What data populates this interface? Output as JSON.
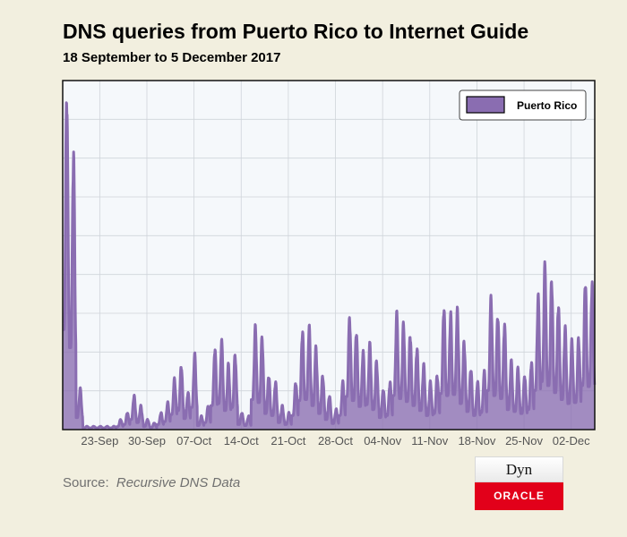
{
  "chart_data": {
    "type": "area",
    "title": "DNS queries from Puerto Rico to Internet Guide",
    "subtitle": "18 September to 5 December 2017",
    "xlabel": "",
    "ylabel": "",
    "x_range": [
      "2017-09-18",
      "2017-12-05"
    ],
    "x_ticks": [
      "23-Sep",
      "30-Sep",
      "07-Oct",
      "14-Oct",
      "21-Oct",
      "28-Oct",
      "04-Nov",
      "11-Nov",
      "18-Nov",
      "25-Nov",
      "02-Dec"
    ],
    "y_ticks_labeled": false,
    "grid": true,
    "legend_position": "top-right",
    "series": [
      {
        "name": "Puerto Rico",
        "color": "#8a6db1",
        "daily_peak": [
          "2017-09-18:1.00",
          "2017-09-19:0.82",
          "2017-09-20:0.12",
          "2017-09-21:0.01",
          "2017-09-22:0.01",
          "2017-09-23:0.01",
          "2017-09-24:0.01",
          "2017-09-25:0.01",
          "2017-09-26:0.03",
          "2017-09-27:0.05",
          "2017-09-28:0.10",
          "2017-09-29:0.07",
          "2017-09-30:0.03",
          "2017-10-01:0.02",
          "2017-10-02:0.05",
          "2017-10-03:0.08",
          "2017-10-04:0.15",
          "2017-10-05:0.19",
          "2017-10-06:0.11",
          "2017-10-07:0.22",
          "2017-10-08:0.04",
          "2017-10-09:0.07",
          "2017-10-10:0.24",
          "2017-10-11:0.26",
          "2017-10-12:0.19",
          "2017-10-13:0.22",
          "2017-10-14:0.05",
          "2017-10-15:0.04",
          "2017-10-16:0.30",
          "2017-10-17:0.27",
          "2017-10-18:0.16",
          "2017-10-19:0.14",
          "2017-10-20:0.07",
          "2017-10-21:0.05",
          "2017-10-22:0.14",
          "2017-10-23:0.29",
          "2017-10-24:0.30",
          "2017-10-25:0.24",
          "2017-10-26:0.16",
          "2017-10-27:0.10",
          "2017-10-28:0.06",
          "2017-10-29:0.14",
          "2017-10-30:0.33",
          "2017-10-31:0.29",
          "2017-11-01:0.23",
          "2017-11-02:0.25",
          "2017-11-03:0.20",
          "2017-11-04:0.12",
          "2017-11-05:0.14",
          "2017-11-06:0.34",
          "2017-11-07:0.31",
          "2017-11-08:0.28",
          "2017-11-09:0.24",
          "2017-11-10:0.19",
          "2017-11-11:0.14",
          "2017-11-12:0.16",
          "2017-11-13:0.36",
          "2017-11-14:0.34",
          "2017-11-15:0.35",
          "2017-11-16:0.26",
          "2017-11-17:0.18",
          "2017-11-18:0.14",
          "2017-11-19:0.17",
          "2017-11-20:0.39",
          "2017-11-21:0.34",
          "2017-11-22:0.31",
          "2017-11-23:0.20",
          "2017-11-24:0.18",
          "2017-11-25:0.16",
          "2017-11-26:0.20",
          "2017-11-27:0.39",
          "2017-11-28:0.48",
          "2017-11-29:0.44",
          "2017-11-30:0.37",
          "2017-12-01:0.30",
          "2017-12-02:0.26",
          "2017-12-03:0.27",
          "2017-12-04:0.44",
          "2017-12-05:0.43"
        ]
      }
    ]
  },
  "source": {
    "label": "Source:",
    "value": "Recursive DNS Data"
  },
  "logo": {
    "top_text": "Dyn",
    "bottom_text": "ORACLE"
  }
}
